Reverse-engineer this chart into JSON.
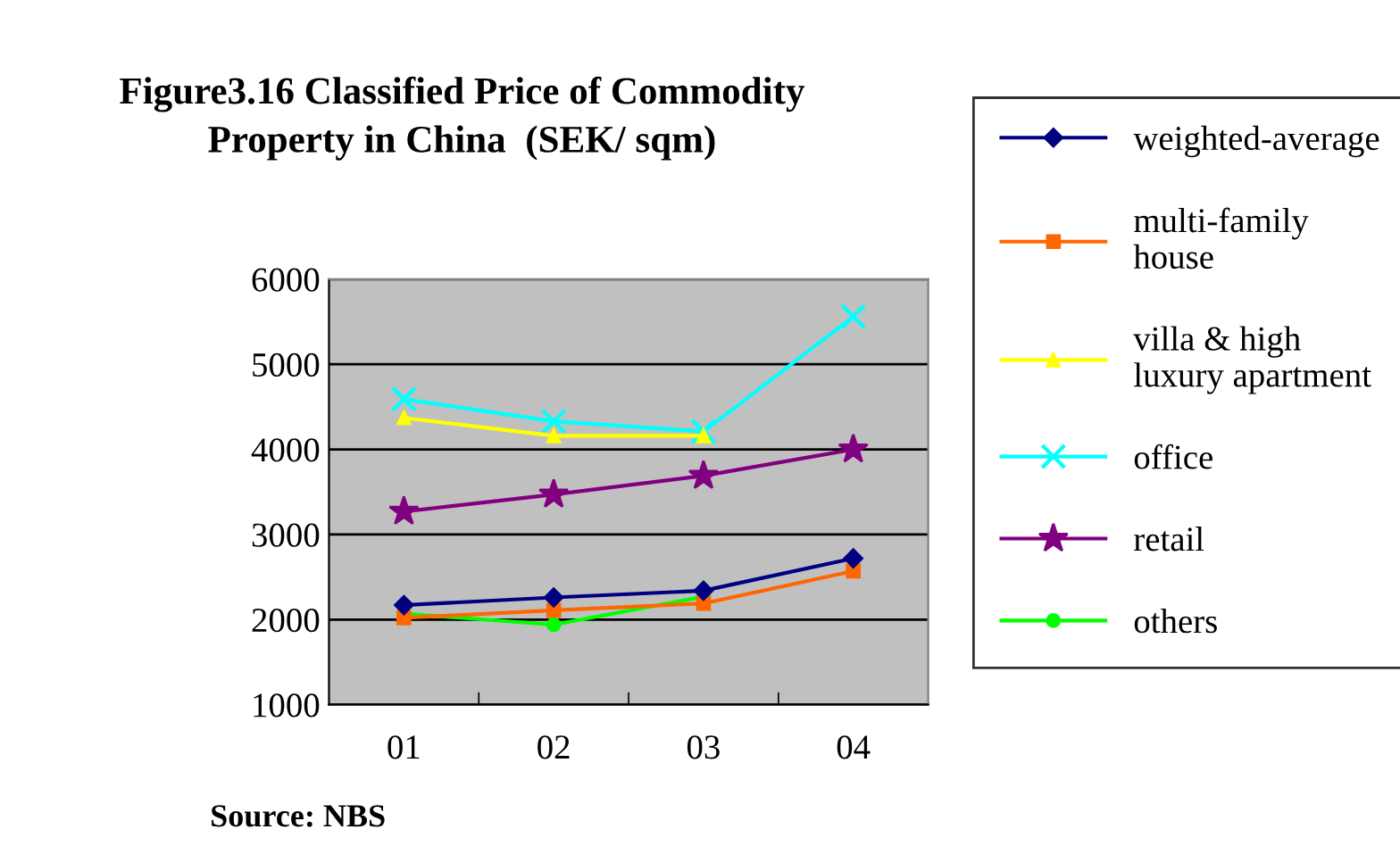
{
  "chart_data": {
    "type": "line",
    "title": "Figure3.16 Classified Price of Commodity\nProperty in China  (SEK/ sqm)",
    "categories": [
      "01",
      "02",
      "03",
      "04"
    ],
    "series": [
      {
        "name": "weighted-average",
        "color": "#000080",
        "marker": "diamond",
        "values": [
          2170,
          2260,
          2340,
          2720
        ]
      },
      {
        "name": "multi-family\nhouse",
        "color": "#ff6600",
        "marker": "square",
        "values": [
          2020,
          2110,
          2190,
          2570
        ]
      },
      {
        "name": "villa & high\nluxury apartment",
        "color": "#ffff00",
        "marker": "triangle",
        "values": [
          4370,
          4160,
          4160,
          null
        ]
      },
      {
        "name": "office",
        "color": "#00ffff",
        "marker": "cross",
        "values": [
          4590,
          4330,
          4210,
          5560
        ]
      },
      {
        "name": "retail",
        "color": "#800080",
        "marker": "star",
        "values": [
          3270,
          3470,
          3690,
          4000
        ]
      },
      {
        "name": "others",
        "color": "#00ff00",
        "marker": "circle",
        "values": [
          2070,
          1940,
          2270,
          null
        ]
      }
    ],
    "ylim": [
      1000,
      6000
    ],
    "yticks": [
      1000,
      2000,
      3000,
      4000,
      5000,
      6000
    ],
    "grid": "y",
    "legend": "right",
    "annotations": [
      "Source: NBS"
    ]
  }
}
